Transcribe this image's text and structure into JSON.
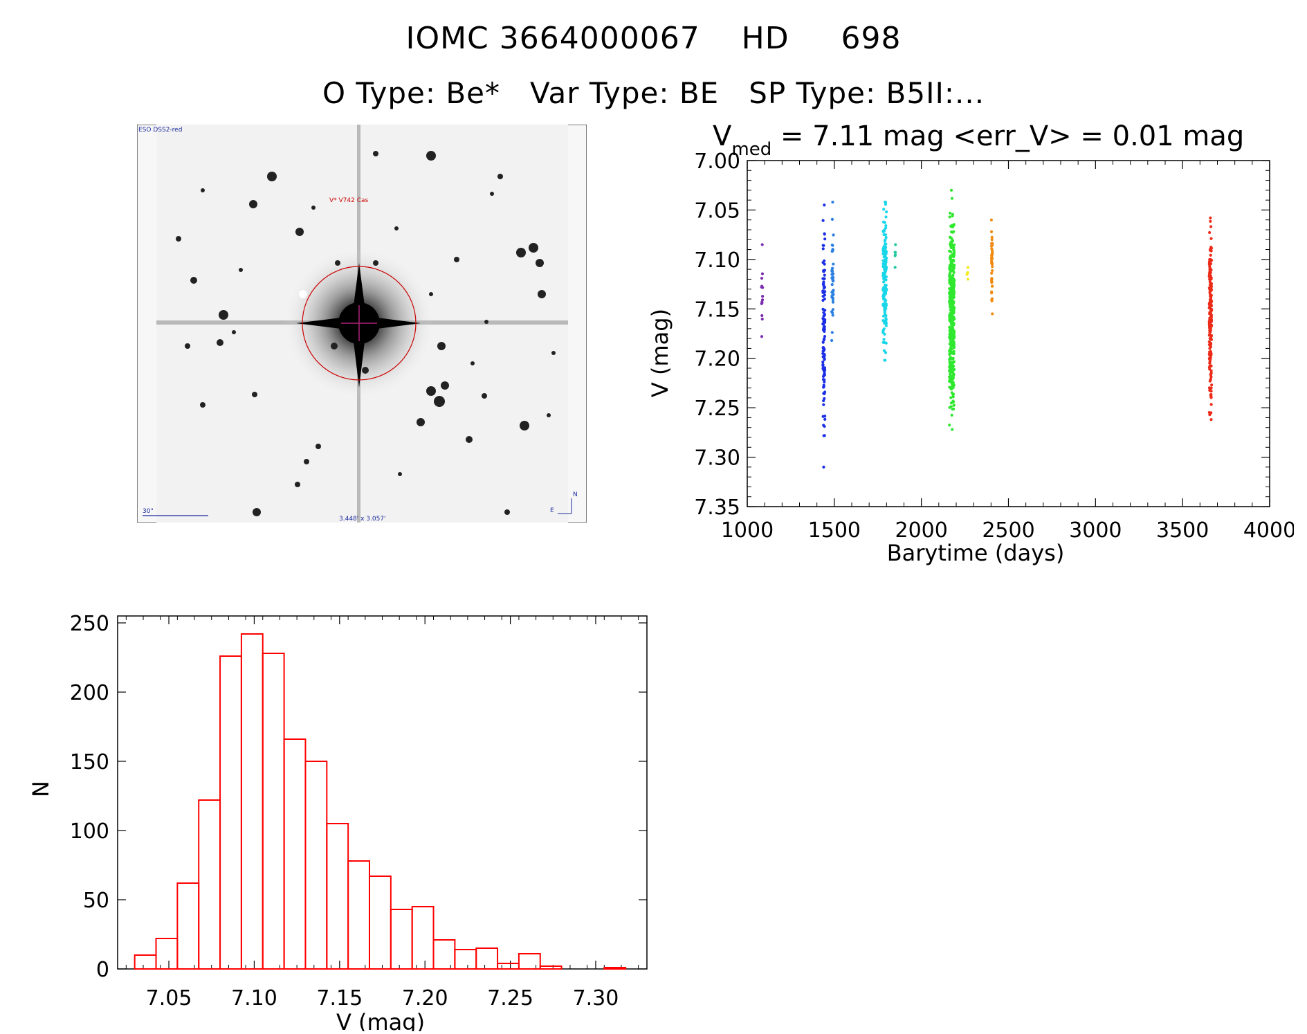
{
  "header": {
    "title_line1": "IOMC 3664000067    HD     698",
    "title_line2": "O Type: Be*   Var Type: BE   SP Type: B5II:..."
  },
  "thumbnail": {
    "survey_label": "ESO DSS2-red",
    "object_label": "V* V742 Cas",
    "scale_label": "30\"",
    "size_label": "3.448' x 3.057'",
    "north_label": "N",
    "east_label": "E"
  },
  "chart_data": [
    {
      "type": "scatter",
      "title_prefix": "V",
      "title_sub": "med",
      "title_rest": " = 7.11 mag <err_V> = 0.01 mag",
      "xlabel": "Barytime (days)",
      "ylabel": "V (mag)",
      "xlim": [
        1000,
        4000
      ],
      "ylim": [
        7.35,
        7.0
      ],
      "y_inverted": true,
      "xticks": [
        "1000",
        "1500",
        "2000",
        "2500",
        "3000",
        "3500",
        "4000"
      ],
      "yticks": [
        "7.00",
        "7.05",
        "7.10",
        "7.15",
        "7.20",
        "7.25",
        "7.30",
        "7.35"
      ],
      "clusters": [
        {
          "color": "#7a2db0",
          "x_center": 1085,
          "x_spread": 4,
          "y_min": 7.085,
          "y_max": 7.178,
          "n": 14
        },
        {
          "color": "#1c2ee6",
          "x_center": 1440,
          "x_spread": 6,
          "y_min": 7.045,
          "y_max": 7.31,
          "n": 120
        },
        {
          "color": "#2a7fe0",
          "x_center": 1490,
          "x_spread": 5,
          "y_min": 7.042,
          "y_max": 7.182,
          "n": 40
        },
        {
          "color": "#19d6e8",
          "x_center": 1790,
          "x_spread": 10,
          "y_min": 7.042,
          "y_max": 7.202,
          "n": 160
        },
        {
          "color": "#22c9a0",
          "x_center": 1850,
          "x_spread": 3,
          "y_min": 7.085,
          "y_max": 7.108,
          "n": 6
        },
        {
          "color": "#2fe82f",
          "x_center": 2175,
          "x_spread": 14,
          "y_min": 7.03,
          "y_max": 7.272,
          "n": 420
        },
        {
          "color": "#f2ea20",
          "x_center": 2265,
          "x_spread": 3,
          "y_min": 7.108,
          "y_max": 7.12,
          "n": 5
        },
        {
          "color": "#f08a10",
          "x_center": 2405,
          "x_spread": 3,
          "y_min": 7.06,
          "y_max": 7.155,
          "n": 40
        },
        {
          "color": "#ec2b18",
          "x_center": 3660,
          "x_spread": 7,
          "y_min": 7.058,
          "y_max": 7.262,
          "n": 200
        }
      ]
    },
    {
      "type": "bar",
      "xlabel": "V (mag)",
      "ylabel": "N",
      "xlim": [
        7.02,
        7.33
      ],
      "ylim": [
        0,
        250
      ],
      "xticks": [
        "7.05",
        "7.10",
        "7.15",
        "7.20",
        "7.25",
        "7.30"
      ],
      "yticks": [
        "0",
        "50",
        "100",
        "150",
        "200",
        "250"
      ],
      "bin_width": 0.0125,
      "bin_edges_start": 7.03,
      "values": [
        10,
        22,
        62,
        122,
        226,
        242,
        228,
        166,
        150,
        105,
        78,
        67,
        43,
        45,
        21,
        14,
        15,
        4,
        11,
        2,
        0,
        0,
        1
      ],
      "bar_color": "#ff0000"
    }
  ]
}
